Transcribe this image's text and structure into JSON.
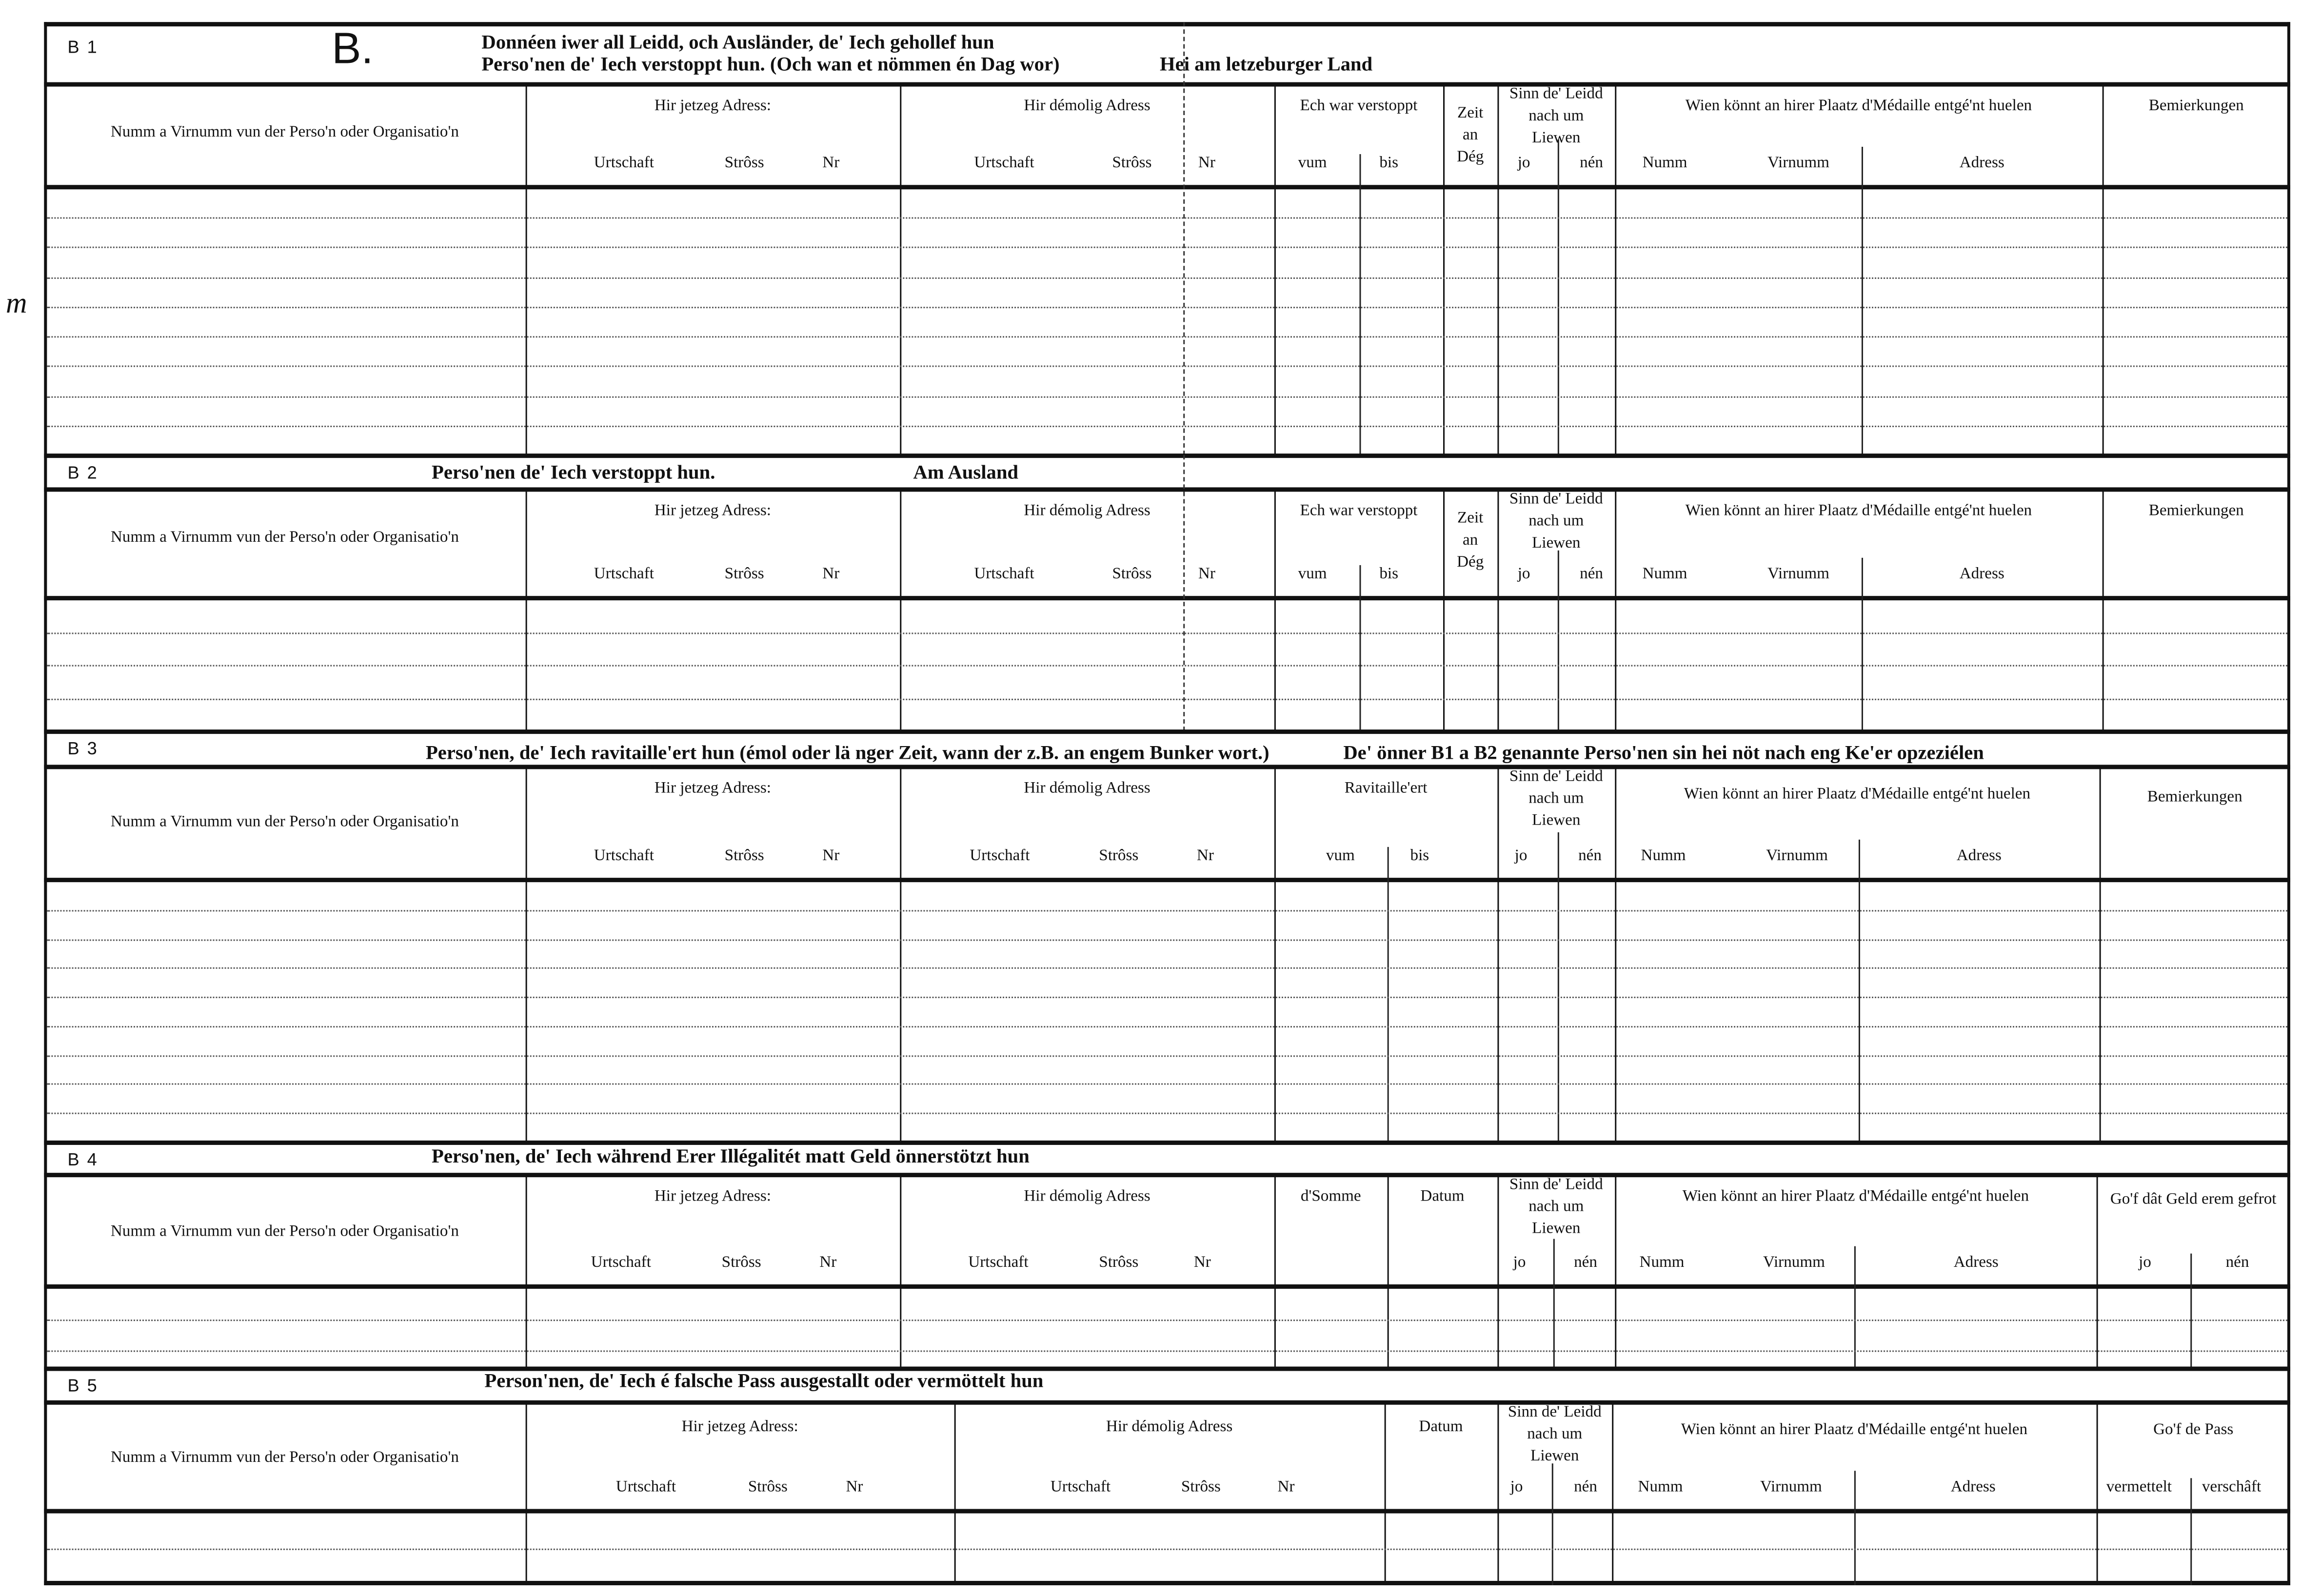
{
  "margin_mark": "m",
  "sections": [
    {
      "code": "B 1",
      "letter": "B.",
      "title": [
        "Donnéen iwer all Leidd, och Ausländer, de' Iech gehollef hun",
        "Perso'nen de' Iech verstoppt hun. (Och wan et nömmen én Dag wor)"
      ],
      "title_right": "Hei am letzeburger Land",
      "columns": [
        {
          "label": "Numm a Virnumm vun der Perso'n oder Organisatio'n"
        },
        {
          "label": "Hir jetzeg Adress:",
          "sub": [
            "Urtschaft",
            "Strôss",
            "Nr"
          ]
        },
        {
          "label": "Hir démolig Adress",
          "sub": [
            "Urtschaft",
            "Strôss",
            "Nr"
          ]
        },
        {
          "label": "Ech war verstoppt",
          "sub": [
            "vum",
            "bis"
          ]
        },
        {
          "label": "Zeit an Dég"
        },
        {
          "label": "Sinn de' Leidd nach um Liewen",
          "sub": [
            "jo",
            "nén"
          ]
        },
        {
          "label": "Wien könnt an hirer Plaatz d'Médaille entgé'nt huelen",
          "sub": [
            "Numm",
            "Virnumm",
            "Adress"
          ]
        },
        {
          "label": "Bemierkungen"
        }
      ]
    },
    {
      "code": "B 2",
      "title": [
        "Perso'nen de' Iech verstoppt hun."
      ],
      "title_right": "Am Ausland",
      "columns": [
        {
          "label": "Numm a Virnumm vun der Perso'n oder Organisatio'n"
        },
        {
          "label": "Hir jetzeg Adress:",
          "sub": [
            "Urtschaft",
            "Strôss",
            "Nr"
          ]
        },
        {
          "label": "Hir démolig Adress",
          "sub": [
            "Urtschaft",
            "Strôss",
            "Nr"
          ]
        },
        {
          "label": "Ech war verstoppt",
          "sub": [
            "vum",
            "bis"
          ]
        },
        {
          "label": "Zeit an Dég"
        },
        {
          "label": "Sinn de' Leidd nach um Liewen",
          "sub": [
            "jo",
            "nén"
          ]
        },
        {
          "label": "Wien könnt an hirer Plaatz d'Médaille entgé'nt huelen",
          "sub": [
            "Numm",
            "Virnumm",
            "Adress"
          ]
        },
        {
          "label": "Bemierkungen"
        }
      ]
    },
    {
      "code": "B 3",
      "title": [
        "Perso'nen, de' Iech ravitaille'ert hun (émol oder lä nger Zeit, wann der z.B. an engem Bunker wort.)"
      ],
      "title_right": "De' önner B1 a B2 genannte Perso'nen sin hei nöt nach eng Ke'er opzeziélen",
      "columns": [
        {
          "label": "Numm a Virnumm vun der Perso'n oder Organisatio'n"
        },
        {
          "label": "Hir jetzeg Adress:",
          "sub": [
            "Urtschaft",
            "Strôss",
            "Nr"
          ]
        },
        {
          "label": "Hir démolig Adress",
          "sub": [
            "Urtschaft",
            "Strôss",
            "Nr"
          ]
        },
        {
          "label": "Ravitaille'ert",
          "sub": [
            "vum",
            "bis"
          ]
        },
        {
          "label": "Sinn de' Leidd nach um Liewen",
          "sub": [
            "jo",
            "nén"
          ]
        },
        {
          "label": "Wien könnt an hirer Plaatz d'Médaille entgé'nt huelen",
          "sub": [
            "Numm",
            "Virnumm",
            "Adress"
          ]
        },
        {
          "label": "Bemierkungen"
        }
      ]
    },
    {
      "code": "B 4",
      "title": [
        "Perso'nen, de' Iech während Erer Illégalitét matt Geld önnerstötzt hun"
      ],
      "columns": [
        {
          "label": "Numm a Virnumm vun der Perso'n oder Organisatio'n"
        },
        {
          "label": "Hir jetzeg Adress:",
          "sub": [
            "Urtschaft",
            "Strôss",
            "Nr"
          ]
        },
        {
          "label": "Hir démolig Adress",
          "sub": [
            "Urtschaft",
            "Strôss",
            "Nr"
          ]
        },
        {
          "label": "d'Somme"
        },
        {
          "label": "Datum"
        },
        {
          "label": "Sinn de' Leidd nach um Liewen",
          "sub": [
            "jo",
            "nén"
          ]
        },
        {
          "label": "Wien könnt an hirer Plaatz d'Médaille entgé'nt huelen",
          "sub": [
            "Numm",
            "Virnumm",
            "Adress"
          ]
        },
        {
          "label": "Go'f dât Geld erem gefrot",
          "sub": [
            "jo",
            "nén"
          ]
        }
      ]
    },
    {
      "code": "B 5",
      "title": [
        "Person'nen, de' Iech é falsche Pass ausgestallt oder vermöttelt hun"
      ],
      "columns": [
        {
          "label": "Numm a Virnumm vun der Perso'n oder Organisatio'n"
        },
        {
          "label": "Hir jetzeg Adress:",
          "sub": [
            "Urtschaft",
            "Strôss",
            "Nr"
          ]
        },
        {
          "label": "Hir démolig Adress",
          "sub": [
            "Urtschaft",
            "Strôss",
            "Nr"
          ]
        },
        {
          "label": "Datum"
        },
        {
          "label": "Sinn de' Leidd nach um Liewen",
          "sub": [
            "jo",
            "nén"
          ]
        },
        {
          "label": "Wien könnt an hirer Plaatz d'Médaille entgé'nt huelen",
          "sub": [
            "Numm",
            "Virnumm",
            "Adress"
          ]
        },
        {
          "label": "Go'f de Pass",
          "sub": [
            "vermettelt",
            "verschâft"
          ]
        }
      ]
    }
  ]
}
